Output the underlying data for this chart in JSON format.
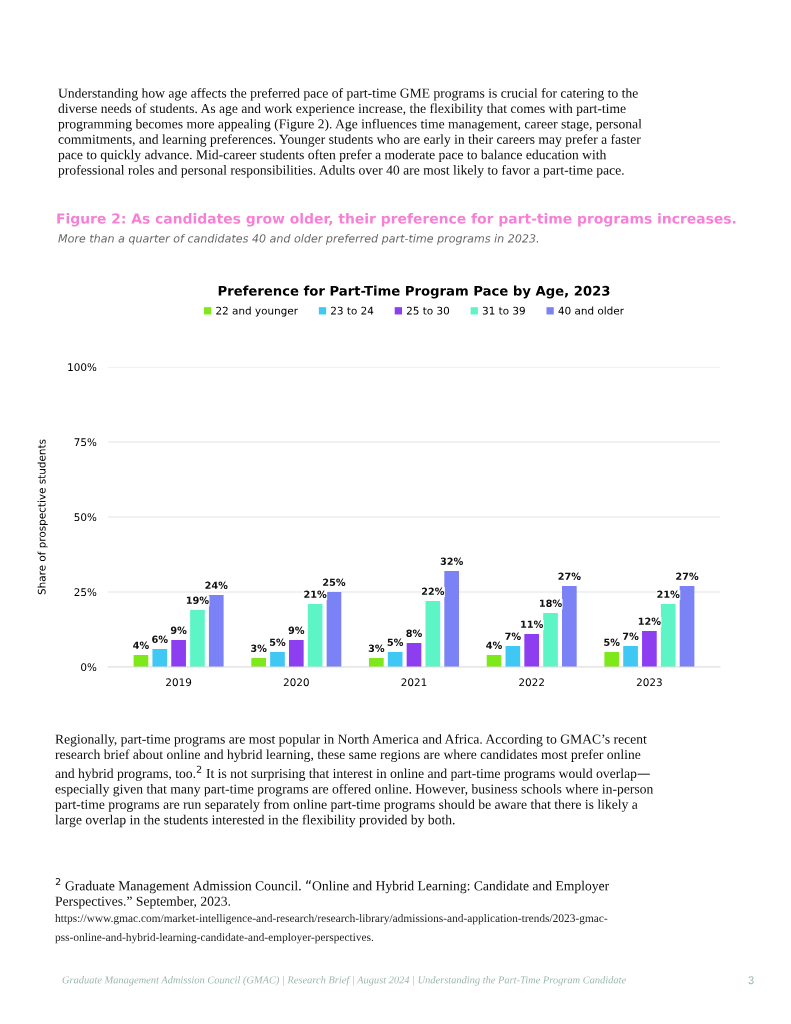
{
  "chart_data": {
    "type": "bar",
    "title": "Preference for Part-Time Program Pace by Age, 2023",
    "ylabel": "Share of prospective students",
    "categories": [
      "2019",
      "2020",
      "2021",
      "2022",
      "2023"
    ],
    "series": [
      {
        "name": "22 and younger",
        "color": "#7ee81a",
        "values": [
          4,
          3,
          3,
          4,
          5
        ],
        "value_labels": [
          "4%",
          "3%",
          "3%",
          "4%",
          "5%"
        ]
      },
      {
        "name": "23 to 24",
        "color": "#3fc8f4",
        "values": [
          6,
          5,
          5,
          7,
          7
        ],
        "value_labels": [
          "6%",
          "5%",
          "5%",
          "7%",
          "7%"
        ]
      },
      {
        "name": "25 to 30",
        "color": "#8c3ef0",
        "values": [
          9,
          9,
          8,
          11,
          12
        ],
        "value_labels": [
          "9%",
          "9%",
          "8%",
          "11%",
          "12%"
        ]
      },
      {
        "name": "31 to 39",
        "color": "#5ef5c6",
        "values": [
          19,
          21,
          22,
          18,
          21
        ],
        "value_labels": [
          "19%",
          "21%",
          "22%",
          "18%",
          "21%"
        ]
      },
      {
        "name": "40 and older",
        "color": "#7b82f5",
        "values": [
          24,
          25,
          32,
          27,
          27
        ],
        "value_labels": [
          "24%",
          "25%",
          "32%",
          "27%",
          "27%"
        ]
      }
    ],
    "ylim": [
      0,
      100
    ],
    "yticks": [
      {
        "value": 0,
        "label": "0%"
      },
      {
        "value": 25,
        "label": "25%"
      },
      {
        "value": 50,
        "label": "50%"
      },
      {
        "value": 75,
        "label": "75%"
      },
      {
        "value": 100,
        "label": "100%"
      }
    ],
    "grid": "y",
    "legend": "top",
    "annotations": [
      "Understanding how age affects the preferred pace of part-time GME programs is crucial for catering to the\ndiverse needs of students. As age and work experience increase, the flexibility that comes with part-time\nprogramming becomes more appealing (Figure 2). Age influences time management, career stage, personal\ncommitments, and learning preferences. Younger students who are early in their careers may prefer a faster\npace to quickly advance. Mid-career students often prefer a moderate pace to balance education with\nprofessional roles and personal responsibilities. Adults over 40 are most likely to favor a part-time pace.",
      "Figure 2: As candidates grow older, their preference for part-time programs increases.",
      "More than a quarter of candidates 40 and older preferred part-time programs in 2023.",
      "Regionally, part-time programs are most popular in North America and Africa. According to GMAC’s recent\nresearch brief about online and hybrid learning, these same regions are where candidates most prefer online\nand hybrid programs, too.$^{2}$ It is not surprising that interest in online and part-time programs would overlap—\nespecially given that many part-time programs are offered online. However, business schools where in-person\npart-time programs are run separately from online part-time programs should be aware that there is likely a\nlarge overlap in the students interested in the flexibility provided by both.",
      "$^{2}$ Graduate Management Admission Council. “Online and Hybrid Learning: Candidate and Employer\nPerspectives.” September, 2023.",
      "https://www.gmac.com/market-intelligence-and-research/research-library/admissions-and-application-trends/2023-gmac-",
      "pss-online-and-hybrid-learning-candidate-and-employer-perspectives.",
      "Graduate Management Admission Council (GMAC) | Research Brief | August 2024 | Understanding the Part-Time Program Candidate",
      "3"
    ]
  }
}
